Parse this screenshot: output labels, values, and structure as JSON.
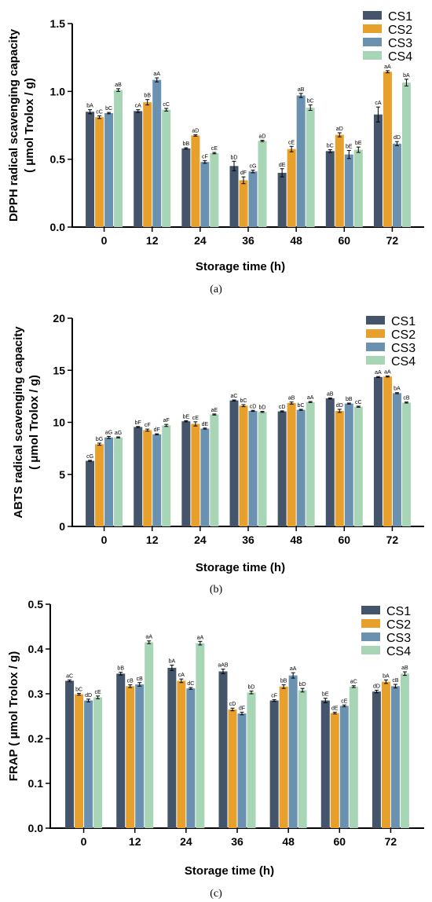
{
  "colors": {
    "CS1": "#44546a",
    "CS2": "#e8a02c",
    "CS3": "#6a91b0",
    "CS4": "#a8d5b5"
  },
  "chart_data": [
    {
      "type": "bar",
      "panel_label": "(a)",
      "ylabel_line1": "DPPH radical scavenging capacity",
      "ylabel_line2": "( μmol Trolox / g)",
      "xlabel": "Storage time (h)",
      "categories": [
        "0",
        "12",
        "24",
        "36",
        "48",
        "60",
        "72"
      ],
      "ylim": [
        0,
        1.5
      ],
      "yticks": [
        0.0,
        0.5,
        1.0,
        1.5
      ],
      "yticklabels": [
        "0.0",
        "0.5",
        "1.0",
        "1.5"
      ],
      "legend_position": "top-right",
      "series": [
        {
          "name": "CS1",
          "values": [
            0.85,
            0.855,
            0.58,
            0.45,
            0.4,
            0.56,
            0.83
          ],
          "errors": [
            0.015,
            0.01,
            0.005,
            0.035,
            0.03,
            0.01,
            0.055
          ],
          "labels": [
            "bA",
            "cA",
            "bB",
            "bD",
            "dE",
            "bC",
            "cA"
          ]
        },
        {
          "name": "CS2",
          "values": [
            0.81,
            0.92,
            0.675,
            0.345,
            0.575,
            0.68,
            1.145
          ],
          "errors": [
            0.01,
            0.02,
            0.005,
            0.025,
            0.02,
            0.015,
            0.008
          ],
          "labels": [
            "cC",
            "bB",
            "aD",
            "dF",
            "cE",
            "aD",
            "aA"
          ]
        },
        {
          "name": "CS3",
          "values": [
            0.84,
            1.085,
            0.48,
            0.41,
            0.97,
            0.535,
            0.615
          ],
          "errors": [
            0.005,
            0.015,
            0.01,
            0.01,
            0.015,
            0.03,
            0.015
          ],
          "labels": [
            "bC",
            "aA",
            "cF",
            "cG",
            "aB",
            "bE",
            "dD"
          ]
        },
        {
          "name": "CS4",
          "values": [
            1.01,
            0.865,
            0.545,
            0.635,
            0.88,
            0.57,
            1.065
          ],
          "errors": [
            0.01,
            0.01,
            0.005,
            0.005,
            0.02,
            0.02,
            0.025
          ],
          "labels": [
            "aB",
            "cC",
            "cE",
            "aD",
            "bC",
            "bE",
            "bA"
          ]
        }
      ]
    },
    {
      "type": "bar",
      "panel_label": "(b)",
      "ylabel_line1": "ABTS radical scavenging capacity",
      "ylabel_line2": "( μmol Trolox / g)",
      "xlabel": "Storage time (h)",
      "categories": [
        "0",
        "12",
        "24",
        "36",
        "48",
        "60",
        "72"
      ],
      "ylim": [
        0,
        20
      ],
      "yticks": [
        0,
        5,
        10,
        15,
        20
      ],
      "yticklabels": [
        "0",
        "5",
        "10",
        "15",
        "20"
      ],
      "legend_position": "top-right",
      "series": [
        {
          "name": "CS1",
          "values": [
            6.3,
            9.55,
            10.1,
            12.1,
            11.05,
            12.3,
            14.35
          ],
          "errors": [
            0.05,
            0.05,
            0.05,
            0.05,
            0.05,
            0.05,
            0.05
          ],
          "labels": [
            "cG",
            "bF",
            "bE",
            "aC",
            "cD",
            "aB",
            "aA"
          ]
        },
        {
          "name": "CS2",
          "values": [
            7.9,
            9.25,
            9.85,
            11.6,
            11.85,
            11.1,
            14.4
          ],
          "errors": [
            0.1,
            0.1,
            0.2,
            0.1,
            0.1,
            0.15,
            0.05
          ],
          "labels": [
            "bG",
            "cF",
            "cE",
            "bC",
            "aB",
            "dD",
            "aA"
          ]
        },
        {
          "name": "CS3",
          "values": [
            8.55,
            8.85,
            9.4,
            11.1,
            11.2,
            11.8,
            12.8
          ],
          "errors": [
            0.1,
            0.05,
            0.05,
            0.05,
            0.05,
            0.05,
            0.05
          ],
          "labels": [
            "aG",
            "dF",
            "dE",
            "cD",
            "bC",
            "bB",
            "bA"
          ]
        },
        {
          "name": "CS4",
          "values": [
            8.55,
            9.7,
            10.75,
            11.0,
            11.95,
            11.5,
            11.9
          ],
          "errors": [
            0.05,
            0.1,
            0.05,
            0.05,
            0.05,
            0.05,
            0.05
          ],
          "labels": [
            "aG",
            "aF",
            "aE",
            "bD",
            "aA",
            "cC",
            "cB"
          ]
        }
      ]
    },
    {
      "type": "bar",
      "panel_label": "(c)",
      "ylabel_line1": "FRAP  ( μmol Trolox / g)",
      "ylabel_line2": "",
      "xlabel": "Storage time (h)",
      "categories": [
        "0",
        "12",
        "24",
        "36",
        "48",
        "60",
        "72"
      ],
      "ylim": [
        0,
        0.5
      ],
      "yticks": [
        0.0,
        0.1,
        0.2,
        0.3,
        0.4,
        0.5
      ],
      "yticklabels": [
        "0.0",
        "0.1",
        "0.2",
        "0.3",
        "0.4",
        "0.5"
      ],
      "legend_position": "top-right",
      "series": [
        {
          "name": "CS1",
          "values": [
            0.329,
            0.345,
            0.358,
            0.35,
            0.285,
            0.285,
            0.305
          ],
          "errors": [
            0.002,
            0.003,
            0.006,
            0.005,
            0.002,
            0.005,
            0.003
          ],
          "labels": [
            "aC",
            "bB",
            "bA",
            "aAB",
            "cF",
            "bE",
            "dD"
          ]
        },
        {
          "name": "CS2",
          "values": [
            0.299,
            0.317,
            0.329,
            0.265,
            0.316,
            0.257,
            0.327
          ],
          "errors": [
            0.002,
            0.003,
            0.004,
            0.003,
            0.004,
            0.002,
            0.004
          ],
          "labels": [
            "bC",
            "cB",
            "cA",
            "cD",
            "bB",
            "dE",
            "bA"
          ]
        },
        {
          "name": "CS3",
          "values": [
            0.285,
            0.321,
            0.312,
            0.256,
            0.341,
            0.273,
            0.317
          ],
          "errors": [
            0.003,
            0.004,
            0.002,
            0.003,
            0.006,
            0.002,
            0.004
          ],
          "labels": [
            "dD",
            "cB",
            "dC",
            "dF",
            "aA",
            "cE",
            "cB"
          ]
        },
        {
          "name": "CS4",
          "values": [
            0.292,
            0.415,
            0.413,
            0.303,
            0.308,
            0.316,
            0.345
          ],
          "errors": [
            0.003,
            0.003,
            0.004,
            0.003,
            0.004,
            0.002,
            0.004
          ],
          "labels": [
            "cE",
            "aA",
            "aA",
            "bD",
            "bD",
            "aC",
            "aB"
          ]
        }
      ]
    }
  ]
}
